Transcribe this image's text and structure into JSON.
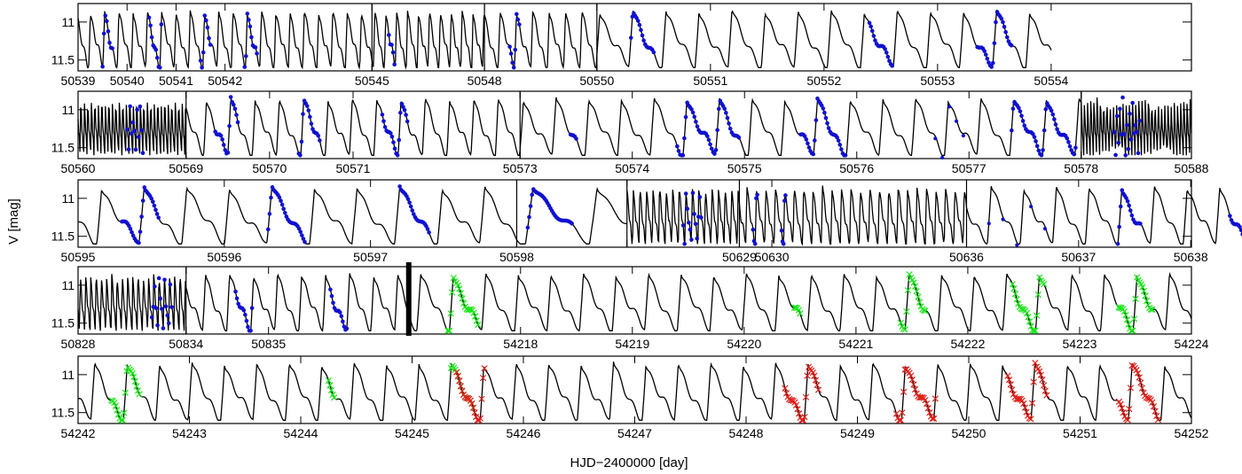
{
  "chart_data": {
    "type": "scatter",
    "xlabel": "HJD−2400000 [day]",
    "ylabel": "V [mag]",
    "ylim": [
      11.62,
      10.78
    ],
    "yticks": [
      "11",
      "11.5"
    ],
    "ytick_values": [
      11.0,
      11.5
    ],
    "period_days": 0.2912,
    "colors": {
      "blue": "#1010d0",
      "green": "#19e619",
      "red": "#e0201a",
      "curve": "#000000"
    },
    "rows": [
      {
        "segments": [
          {
            "range": [
              50539,
              50545
            ],
            "ticks": [
              "50539",
              "50540",
              "50541",
              "50542",
              "50545"
            ],
            "blue": [
              [
                50539.5,
                50539.7
              ],
              [
                50540.45,
                50540.7
              ],
              [
                50541.5,
                50541.7
              ],
              [
                50542.4,
                50542.65
              ]
            ]
          },
          {
            "range": [
              50545,
              50548
            ],
            "ticks": [
              "50545",
              "50548"
            ],
            "blue": [
              [
                50545.45,
                50545.6
              ]
            ]
          },
          {
            "range": [
              50548,
              50550
            ],
            "ticks": [
              "50548",
              "50550"
            ],
            "blue": [
              [
                50548.45,
                50548.62
              ]
            ]
          },
          {
            "range": [
              50550,
              50554
            ],
            "ticks": [
              "50550",
              "50551",
              "50552",
              "50553",
              "50554"
            ],
            "blue": [
              [
                50550.3,
                50550.5
              ],
              [
                50552.4,
                50552.6
              ],
              [
                50553.35,
                50553.65
              ]
            ]
          }
        ]
      },
      {
        "segments": [
          {
            "range": [
              50560,
              50569
            ],
            "ticks": [
              "50560",
              "50569"
            ],
            "blue": [
              [
                50564.1,
                50565.4
              ]
            ]
          },
          {
            "range": [
              50569,
              50573
            ],
            "ticks": [
              "50569",
              "50570",
              "50571",
              "50573"
            ],
            "blue": [
              [
                50569.35,
                50569.62
              ],
              [
                50570.35,
                50570.6
              ],
              [
                50571.35,
                50571.65
              ]
            ]
          },
          {
            "range": [
              50573,
              50578
            ],
            "ticks": [
              "50573",
              "50574",
              "50575",
              "50576",
              "50577",
              "50578"
            ],
            "blue": [
              [
                50573.45,
                50573.5
              ],
              [
                50574.4,
                50574.95
              ],
              [
                50575.5,
                50575.9
              ],
              [
                50577.38,
                50577.95
              ]
            ],
            "sparse": [
              [
                50576.7,
                50576.95
              ]
            ]
          },
          {
            "range": [
              50578,
              50588
            ],
            "ticks": [
              "50578",
              "50588"
            ],
            "blue": [
              [
                50581.0,
                50583.3
              ]
            ]
          }
        ]
      },
      {
        "segments": [
          {
            "range": [
              50595,
              50598
            ],
            "ticks": [
              "50595",
              "50596",
              "50597",
              "50598"
            ],
            "blue": [
              [
                50595.3,
                50595.55
              ],
              [
                50596.3,
                50596.55
              ],
              [
                50597.2,
                50597.4
              ]
            ]
          },
          {
            "range": [
              50598,
              50598.5
            ],
            "ticks": [
              "50598"
            ],
            "blue": [
              [
                50598.05,
                50598.25
              ]
            ]
          },
          {
            "range": [
              50624,
              50629
            ],
            "ticks": [
              "50624",
              "50629"
            ],
            "blue": [
              [
                50626.5,
                50627.3
              ]
            ]
          },
          {
            "range": [
              50629,
              50636
            ],
            "ticks": [
              "50629",
              "50630",
              "50636"
            ],
            "blue": [
              [
                50629.42,
                50629.55
              ],
              [
                50630.3,
                50630.42
              ]
            ]
          },
          {
            "range": [
              50636,
              50639
            ],
            "ticks": [
              "50636",
              "50637",
              "50638",
              "50639"
            ],
            "blue": [
              [
                50637.35,
                50637.55
              ],
              [
                50638.35,
                50638.65
              ]
            ],
            "sparse": [
              [
                50636.2,
                50636.7
              ]
            ]
          }
        ]
      },
      {
        "segments": [
          {
            "range": [
              50828,
              50834
            ],
            "ticks": [
              "50828",
              "50834"
            ],
            "blue": [
              [
                50832.1,
                50833.2
              ]
            ]
          },
          {
            "range": [
              50834,
              50836.7
            ],
            "ticks": [
              "50834",
              "50835"
            ],
            "blue": [
              [
                50834.6,
                50834.8
              ],
              [
                50835.75,
                50835.95
              ]
            ]
          },
          {
            "range": [
              54217,
              54224
            ],
            "ticks": [
              "54217",
              "54218",
              "54219",
              "54220",
              "54221",
              "54222",
              "54223",
              "54224"
            ],
            "green": [
              [
                54217.35,
                54217.62
              ],
              [
                54220.45,
                54220.5
              ],
              [
                54221.4,
                54221.62
              ],
              [
                54222.4,
                54222.68
              ],
              [
                54223.35,
                54223.65
              ]
            ]
          }
        ]
      },
      {
        "segments": [
          {
            "range": [
              54242,
              54252
            ],
            "ticks": [
              "54242",
              "54243",
              "54244",
              "54245",
              "54246",
              "54247",
              "54248",
              "54249",
              "54250",
              "54251",
              "54252"
            ],
            "green": [
              [
                54242.3,
                54242.55
              ],
              [
                54244.25,
                54244.3
              ],
              [
                54245.35,
                54245.55
              ]
            ],
            "red": [
              [
                54245.4,
                54245.65
              ],
              [
                54248.35,
                54248.65
              ],
              [
                54249.35,
                54249.7
              ],
              [
                54250.35,
                54250.7
              ],
              [
                54251.35,
                54251.7
              ]
            ]
          }
        ]
      }
    ]
  }
}
